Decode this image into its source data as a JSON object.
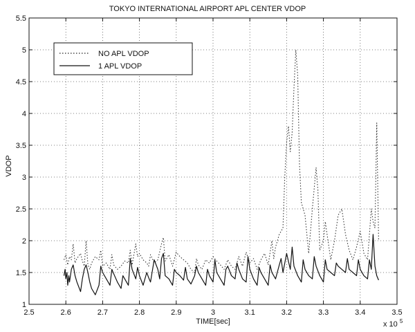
{
  "chart_data": {
    "type": "line",
    "title": "TOKYO INTERNATIONAL AIRPORT APL CENTER VDOP",
    "xlabel": "TIME[sec]",
    "ylabel": "VDOP",
    "x_multiplier_label": "x 10",
    "x_multiplier_exponent": "5",
    "xlim": [
      2.5,
      3.5
    ],
    "ylim": [
      1,
      5.5
    ],
    "xticks": [
      "2.5",
      "2.6",
      "2.7",
      "2.8",
      "2.9",
      "3",
      "3.1",
      "3.2",
      "3.3",
      "3.4",
      "3.5"
    ],
    "yticks": [
      "1",
      "1.5",
      "2",
      "2.5",
      "3",
      "3.5",
      "4",
      "4.5",
      "5",
      "5.5"
    ],
    "grid": true,
    "legend_position": "top-left",
    "series": [
      {
        "name": "NO APL VDOP",
        "style": "dotted",
        "x": [
          2.595,
          2.6,
          2.605,
          2.61,
          2.615,
          2.62,
          2.625,
          2.63,
          2.64,
          2.645,
          2.65,
          2.655,
          2.66,
          2.665,
          2.67,
          2.68,
          2.69,
          2.695,
          2.7,
          2.71,
          2.72,
          2.725,
          2.73,
          2.74,
          2.75,
          2.76,
          2.77,
          2.775,
          2.78,
          2.79,
          2.795,
          2.8,
          2.81,
          2.82,
          2.825,
          2.83,
          2.84,
          2.85,
          2.86,
          2.865,
          2.87,
          2.88,
          2.89,
          2.9,
          2.91,
          2.92,
          2.93,
          2.94,
          2.95,
          2.955,
          2.96,
          2.97,
          2.98,
          2.99,
          3.0,
          3.01,
          3.02,
          3.03,
          3.04,
          3.05,
          3.06,
          3.07,
          3.08,
          3.09,
          3.1,
          3.11,
          3.12,
          3.13,
          3.14,
          3.15,
          3.16,
          3.165,
          3.17,
          3.18,
          3.19,
          3.195,
          3.2,
          3.205,
          3.21,
          3.215,
          3.22,
          3.225,
          3.23,
          3.235,
          3.24,
          3.25,
          3.26,
          3.27,
          3.28,
          3.285,
          3.29,
          3.3,
          3.305,
          3.31,
          3.32,
          3.33,
          3.34,
          3.35,
          3.355,
          3.36,
          3.37,
          3.38,
          3.39,
          3.4,
          3.41,
          3.42,
          3.43,
          3.435,
          3.44,
          3.445,
          3.45
        ],
        "y": [
          1.7,
          1.78,
          1.62,
          1.75,
          1.7,
          1.95,
          1.65,
          1.72,
          1.8,
          1.68,
          1.6,
          2.0,
          1.62,
          1.55,
          1.65,
          1.75,
          1.7,
          1.85,
          1.6,
          1.65,
          1.55,
          1.78,
          1.62,
          1.55,
          1.6,
          1.68,
          1.65,
          1.85,
          1.62,
          1.95,
          1.75,
          1.8,
          1.7,
          1.65,
          1.6,
          1.78,
          1.65,
          1.7,
          1.95,
          2.05,
          1.68,
          1.78,
          1.6,
          1.82,
          1.75,
          1.7,
          1.65,
          1.55,
          1.5,
          1.72,
          1.62,
          1.55,
          1.7,
          1.65,
          1.75,
          1.68,
          1.62,
          1.55,
          1.7,
          1.6,
          1.55,
          1.75,
          1.6,
          1.82,
          1.65,
          1.72,
          1.55,
          1.7,
          1.8,
          1.62,
          2.0,
          1.72,
          1.9,
          2.1,
          2.2,
          3.0,
          3.55,
          3.8,
          3.4,
          3.7,
          4.4,
          5.0,
          4.6,
          3.2,
          2.6,
          2.4,
          1.8,
          2.5,
          3.15,
          2.8,
          1.85,
          2.0,
          2.3,
          2.1,
          1.7,
          2.0,
          2.4,
          2.5,
          2.3,
          2.1,
          1.85,
          1.7,
          1.9,
          2.15,
          1.8,
          1.7,
          2.5,
          2.3,
          2.2,
          3.85,
          2.0
        ]
      },
      {
        "name": "1 APL VDOP",
        "style": "solid",
        "x": [
          2.595,
          2.598,
          2.6,
          2.603,
          2.605,
          2.608,
          2.61,
          2.615,
          2.62,
          2.625,
          2.63,
          2.64,
          2.645,
          2.65,
          2.655,
          2.66,
          2.665,
          2.67,
          2.68,
          2.69,
          2.695,
          2.7,
          2.71,
          2.72,
          2.725,
          2.73,
          2.74,
          2.75,
          2.755,
          2.76,
          2.77,
          2.775,
          2.78,
          2.79,
          2.795,
          2.8,
          2.81,
          2.82,
          2.825,
          2.83,
          2.84,
          2.85,
          2.855,
          2.86,
          2.865,
          2.87,
          2.88,
          2.89,
          2.895,
          2.9,
          2.91,
          2.92,
          2.925,
          2.93,
          2.94,
          2.95,
          2.955,
          2.96,
          2.97,
          2.98,
          2.985,
          2.99,
          3.0,
          3.005,
          3.01,
          3.02,
          3.03,
          3.035,
          3.04,
          3.05,
          3.06,
          3.065,
          3.07,
          3.08,
          3.09,
          3.095,
          3.1,
          3.11,
          3.12,
          3.125,
          3.13,
          3.14,
          3.15,
          3.155,
          3.16,
          3.17,
          3.18,
          3.185,
          3.19,
          3.2,
          3.21,
          3.215,
          3.22,
          3.23,
          3.24,
          3.245,
          3.25,
          3.26,
          3.27,
          3.275,
          3.28,
          3.29,
          3.3,
          3.305,
          3.31,
          3.32,
          3.33,
          3.335,
          3.34,
          3.35,
          3.36,
          3.365,
          3.37,
          3.38,
          3.39,
          3.395,
          3.4,
          3.41,
          3.42,
          3.425,
          3.43,
          3.435,
          3.44,
          3.445,
          3.45
        ],
        "y": [
          1.45,
          1.55,
          1.4,
          1.5,
          1.3,
          1.45,
          1.35,
          1.55,
          1.62,
          1.45,
          1.35,
          1.2,
          1.4,
          1.55,
          1.62,
          1.5,
          1.35,
          1.25,
          1.15,
          1.3,
          1.6,
          1.5,
          1.4,
          1.3,
          1.55,
          1.48,
          1.35,
          1.25,
          1.45,
          1.4,
          1.3,
          1.72,
          1.55,
          1.4,
          1.58,
          1.45,
          1.3,
          1.5,
          1.42,
          1.35,
          1.7,
          1.55,
          1.4,
          1.72,
          1.8,
          1.45,
          1.4,
          1.3,
          1.55,
          1.5,
          1.45,
          1.38,
          1.58,
          1.4,
          1.32,
          1.45,
          1.6,
          1.5,
          1.4,
          1.3,
          1.55,
          1.45,
          1.35,
          1.7,
          1.5,
          1.4,
          1.3,
          1.55,
          1.6,
          1.45,
          1.4,
          1.65,
          1.55,
          1.4,
          1.35,
          1.75,
          1.55,
          1.4,
          1.3,
          1.58,
          1.5,
          1.4,
          1.3,
          1.62,
          1.5,
          1.4,
          1.62,
          1.72,
          1.5,
          1.8,
          1.55,
          1.9,
          1.6,
          1.45,
          1.35,
          1.7,
          1.55,
          1.45,
          1.4,
          1.75,
          1.6,
          1.45,
          1.35,
          1.7,
          1.55,
          1.5,
          1.45,
          1.65,
          1.6,
          1.55,
          1.5,
          1.72,
          1.55,
          1.5,
          1.45,
          1.7,
          1.55,
          1.45,
          1.4,
          1.7,
          1.55,
          2.1,
          1.6,
          1.45,
          1.38
        ]
      }
    ]
  }
}
